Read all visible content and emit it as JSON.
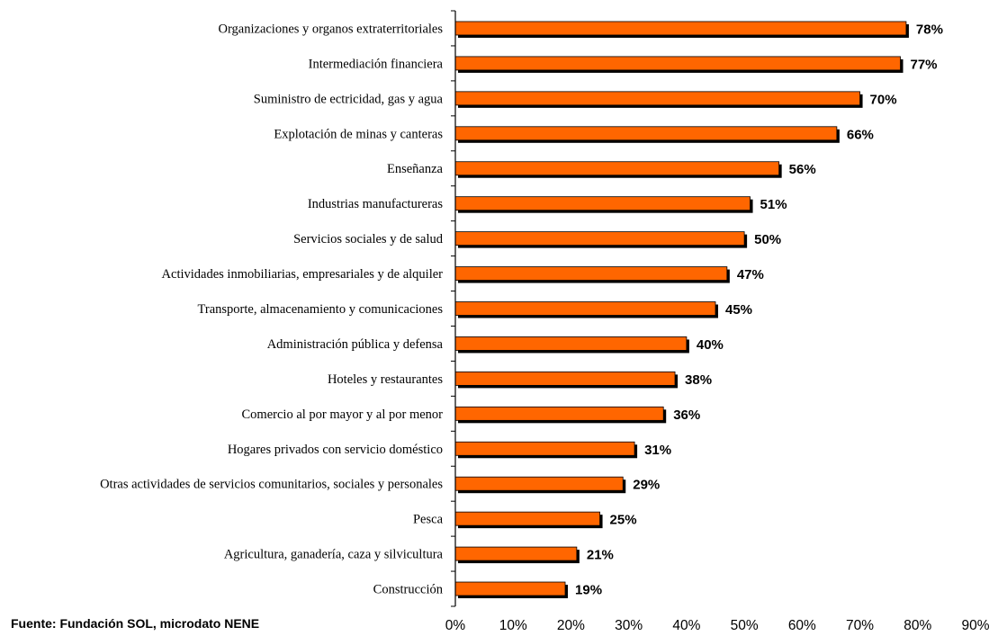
{
  "source_note": "Fuente: Fundación SOL, microdato NENE",
  "chart_data": {
    "type": "bar",
    "orientation": "horizontal",
    "title": "",
    "xlabel": "",
    "ylabel": "",
    "xlim": [
      0,
      90
    ],
    "x_ticks": [
      0,
      10,
      20,
      30,
      40,
      50,
      60,
      70,
      80,
      90
    ],
    "tick_suffix": "%",
    "grid": false,
    "bar_color": "#FF6600",
    "shadow_color": "#000000",
    "categories": [
      "Organizaciones y organos extraterritoriales",
      "Intermediación financiera",
      "Suministro de ectricidad, gas y agua",
      "Explotación de minas y canteras",
      "Enseñanza",
      "Industrias manufactureras",
      "Servicios sociales y de salud",
      "Actividades inmobiliarias, empresariales y de alquiler",
      "Transporte, almacenamiento y comunicaciones",
      "Administración pública y defensa",
      "Hoteles y restaurantes",
      "Comercio al por mayor y al por menor",
      "Hogares privados con servicio doméstico",
      "Otras actividades de servicios comunitarios, sociales y personales",
      "Pesca",
      "Agricultura, ganadería, caza y silvicultura",
      "Construcción"
    ],
    "values": [
      78,
      77,
      70,
      66,
      56,
      51,
      50,
      47,
      45,
      40,
      38,
      36,
      31,
      29,
      25,
      21,
      19
    ],
    "data_labels": [
      "78%",
      "77%",
      "70%",
      "66%",
      "56%",
      "51%",
      "50%",
      "47%",
      "45%",
      "40%",
      "38%",
      "36%",
      "31%",
      "29%",
      "25%",
      "21%",
      "19%"
    ]
  }
}
